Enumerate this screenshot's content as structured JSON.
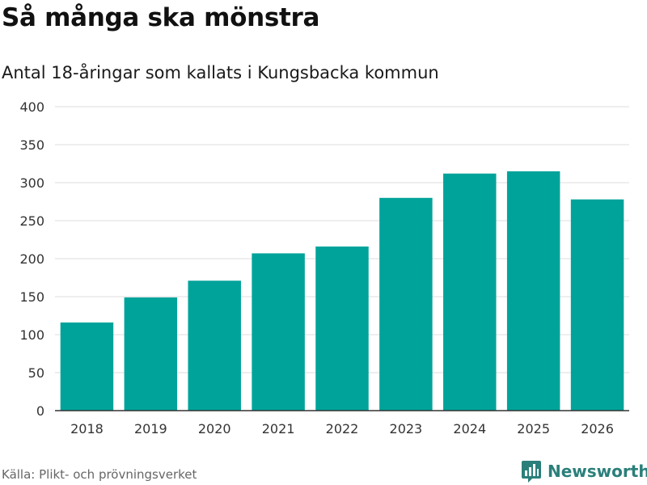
{
  "title": "Så många ska mönstra",
  "subtitle": "Antal 18-åringar som kallats i Kungsbacka kommun",
  "source": "Källa: Plikt- och prövningsverket",
  "brand": {
    "name": "Newsworthy",
    "logo_icon": "bar-chart-icon",
    "color": "#2a7f7a"
  },
  "colors": {
    "bar": "#00a39a",
    "grid": "#dddddd",
    "axis": "#333333"
  },
  "chart_data": {
    "type": "bar",
    "title": "Så många ska mönstra",
    "subtitle": "Antal 18-åringar som kallats i Kungsbacka kommun",
    "xlabel": "",
    "ylabel": "",
    "categories": [
      "2018",
      "2019",
      "2020",
      "2021",
      "2022",
      "2023",
      "2024",
      "2025",
      "2026"
    ],
    "values": [
      116,
      149,
      171,
      207,
      216,
      280,
      312,
      315,
      278
    ],
    "ylim": [
      0,
      400
    ],
    "yticks": [
      0,
      50,
      100,
      150,
      200,
      250,
      300,
      350,
      400
    ],
    "grid": true
  }
}
